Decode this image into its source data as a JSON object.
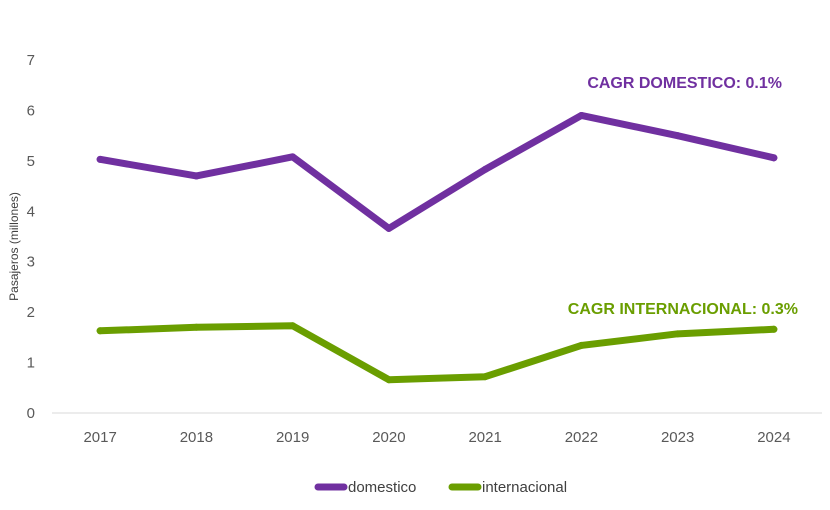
{
  "chart_data": {
    "type": "line",
    "title": "",
    "xlabel": "",
    "ylabel": "Pasajeros (millones)",
    "categories": [
      "2017",
      "2018",
      "2019",
      "2020",
      "2021",
      "2022",
      "2023",
      "2024"
    ],
    "ylim": [
      0,
      7
    ],
    "yticks": [
      "0",
      "1",
      "2",
      "3",
      "4",
      "5",
      "6",
      "7"
    ],
    "grid": false,
    "legend_position": "bottom",
    "series": [
      {
        "name": "domestico",
        "color": "#7030A0",
        "values": [
          5.03,
          4.7,
          5.08,
          3.66,
          4.83,
          5.9,
          5.5,
          5.06
        ]
      },
      {
        "name": "internacional",
        "color": "#6A9E00",
        "values": [
          1.63,
          1.7,
          1.73,
          0.66,
          0.72,
          1.34,
          1.57,
          1.66
        ]
      }
    ],
    "annotations": [
      {
        "text": "CAGR DOMESTICO: 0.1%",
        "color": "#7030A0"
      },
      {
        "text": "CAGR INTERNACIONAL: 0.3%",
        "color": "#6A9E00"
      }
    ]
  }
}
